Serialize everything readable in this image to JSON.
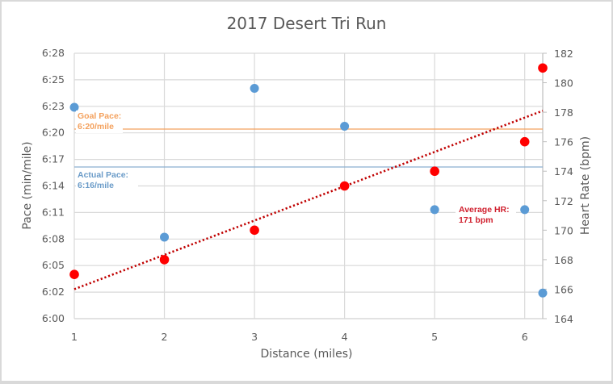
{
  "chart_data": {
    "type": "scatter",
    "title": "2017 Desert Tri Run",
    "xlabel": "Distance (miles)",
    "ylabel": "Pace (min/mile)",
    "y2label": "Heart Rate (bpm)",
    "xlim": [
      1,
      6.2
    ],
    "x_ticks": [
      "1",
      "2",
      "3",
      "4",
      "5",
      "6"
    ],
    "ylim_seconds_over_6min": [
      0,
      28
    ],
    "y_ticks": [
      "6:00",
      "6:02",
      "6:05",
      "6:08",
      "6:11",
      "6:14",
      "6:17",
      "6:20",
      "6:23",
      "6:25",
      "6:28"
    ],
    "y2lim": [
      164,
      182
    ],
    "y2_ticks": [
      "164",
      "166",
      "168",
      "170",
      "172",
      "174",
      "176",
      "178",
      "180",
      "182"
    ],
    "grid": true,
    "legend": "none",
    "series": [
      {
        "name": "Pace",
        "axis": "left",
        "color": "#5B9BD5",
        "x": [
          1,
          2,
          3,
          4,
          5,
          6,
          6.2
        ],
        "values": [
          "6:22",
          "6:09",
          "6:24",
          "6:20",
          "6:11",
          "6:11",
          "6:03"
        ],
        "seconds": [
          22.3,
          8.6,
          24.3,
          20.3,
          11.5,
          11.5,
          2.7
        ]
      },
      {
        "name": "Heart Rate",
        "axis": "right",
        "color": "#FF0000",
        "x": [
          1,
          2,
          3,
          4,
          5,
          6,
          6.2
        ],
        "values": [
          167,
          168,
          170,
          173,
          174,
          176,
          181
        ]
      }
    ],
    "trendline": {
      "series": "Heart Rate",
      "type": "linear",
      "style": "dotted",
      "color": "#C00000",
      "start": {
        "x": 1,
        "y": 166.0
      },
      "end": {
        "x": 6.2,
        "y": 178.1
      }
    },
    "reference_lines": [
      {
        "name": "Goal Pace",
        "axis": "left",
        "seconds": 20,
        "color": "#F4A15D",
        "label_line1": "Goal Pace:",
        "label_line2": "6:20/mile"
      },
      {
        "name": "Actual Pace",
        "axis": "left",
        "seconds": 16,
        "color": "#8AAFD0",
        "label_line1": "Actual Pace:",
        "label_line2": "6:16/mile"
      }
    ],
    "annotations": [
      {
        "name": "Average HR",
        "line1": "Average HR:",
        "line2": "171 bpm",
        "color": "#D0202E"
      }
    ]
  }
}
